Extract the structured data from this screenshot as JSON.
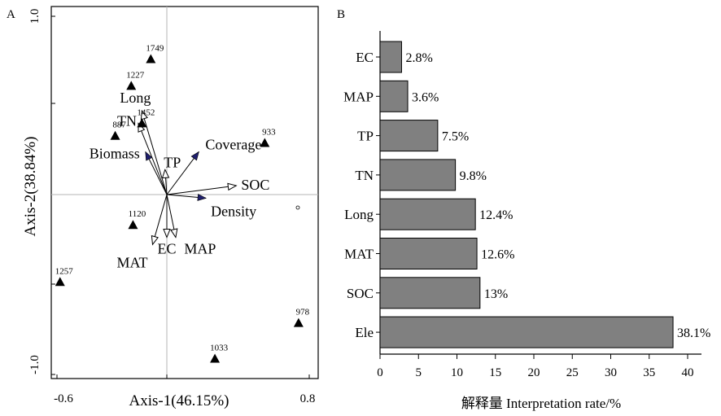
{
  "chart_data": [
    {
      "type": "scatter",
      "panel_label": "A",
      "xlabel": "Axis-1(46.15%)",
      "ylabel": "Axis-2(38.84%)",
      "xlim": [
        -0.62,
        0.83
      ],
      "ylim": [
        -1.0,
        1.0
      ],
      "x_tick_labels": [
        {
          "value": -0.6,
          "label": "-0.6"
        },
        {
          "value": 0.8,
          "label": "0.8"
        }
      ],
      "y_tick_labels": [
        {
          "value": 1.0,
          "label": "1.0"
        },
        {
          "value": -1.0,
          "label": "-1.0"
        }
      ],
      "sites": [
        {
          "label": "1749",
          "x": -0.09,
          "y": 0.76
        },
        {
          "label": "1227",
          "x": -0.2,
          "y": 0.61
        },
        {
          "label": "1452",
          "x": -0.14,
          "y": 0.4
        },
        {
          "label": "887",
          "x": -0.29,
          "y": 0.33
        },
        {
          "label": "933",
          "x": 0.55,
          "y": 0.29
        },
        {
          "label": "1120",
          "x": -0.19,
          "y": -0.17
        },
        {
          "label": "1257",
          "x": -0.6,
          "y": -0.49
        },
        {
          "label": "978",
          "x": 0.74,
          "y": -0.72
        },
        {
          "label": "1033",
          "x": 0.27,
          "y": -0.92
        }
      ],
      "vectors": [
        {
          "name": "Long",
          "x": -0.14,
          "y": 0.47,
          "head": "open"
        },
        {
          "name": "TN",
          "x": -0.16,
          "y": 0.4,
          "head": "open"
        },
        {
          "name": "Biomass",
          "x": -0.12,
          "y": 0.24,
          "head": "filled"
        },
        {
          "name": "TP",
          "x": -0.01,
          "y": 0.14,
          "head": "open"
        },
        {
          "name": "Coverage",
          "x": 0.18,
          "y": 0.24,
          "head": "filled"
        },
        {
          "name": "SOC",
          "x": 0.39,
          "y": 0.05,
          "head": "open"
        },
        {
          "name": "Density",
          "x": 0.22,
          "y": -0.02,
          "head": "filled"
        },
        {
          "name": "MAT",
          "x": -0.08,
          "y": -0.28,
          "head": "open"
        },
        {
          "name": "EC",
          "x": 0.0,
          "y": -0.24,
          "head": "open"
        },
        {
          "name": "MAP",
          "x": 0.05,
          "y": -0.24,
          "head": "open"
        }
      ]
    },
    {
      "type": "bar",
      "orientation": "horizontal",
      "panel_label": "B",
      "xlabel": "解释量 Interpretation rate/%",
      "xlim": [
        0,
        42
      ],
      "x_ticks": [
        0,
        5,
        10,
        15,
        20,
        25,
        30,
        35,
        40
      ],
      "categories": [
        "EC",
        "MAP",
        "TP",
        "TN",
        "Long",
        "MAT",
        "SOC",
        "Ele"
      ],
      "values": [
        2.8,
        3.6,
        7.5,
        9.8,
        12.4,
        12.6,
        13,
        38.1
      ],
      "value_labels": [
        "2.8%",
        "3.6%",
        "7.5%",
        "9.8%",
        "12.4%",
        "12.6%",
        "13%",
        "38.1%"
      ],
      "bar_color": "#808080"
    }
  ]
}
